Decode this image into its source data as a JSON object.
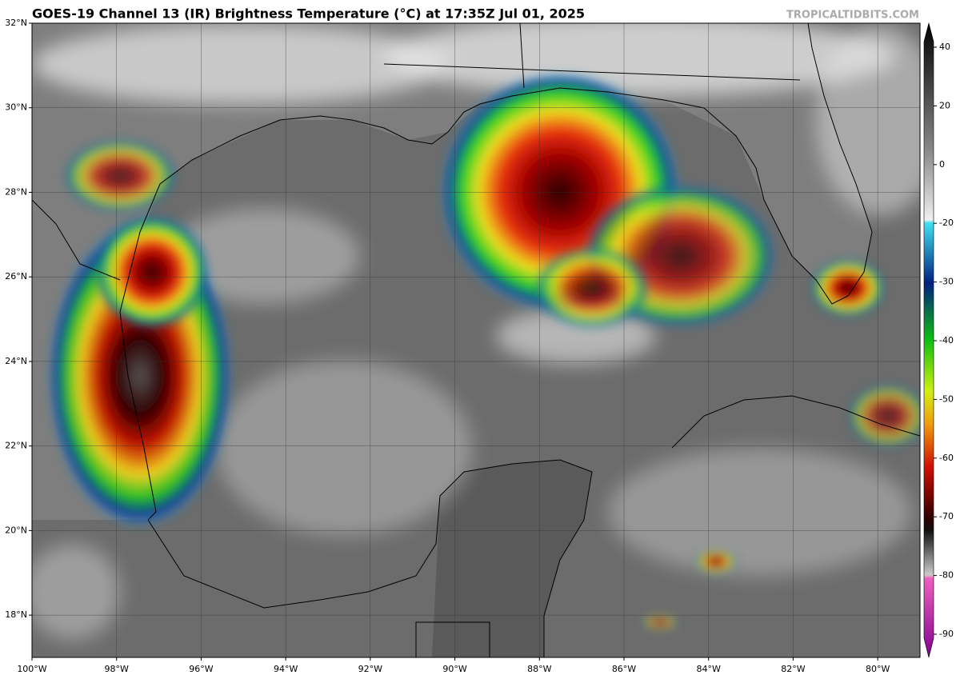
{
  "header": {
    "title": "GOES-19 Channel 13 (IR) Brightness Temperature (°C) at 17:35Z Jul 01, 2025",
    "watermark": "TROPICALTIDBITS.COM"
  },
  "map": {
    "lonlim": [
      -100,
      -79
    ],
    "latlim": [
      17,
      32
    ],
    "lonticks": [
      {
        "value": -100,
        "label": "100°W"
      },
      {
        "value": -98,
        "label": "98°W"
      },
      {
        "value": -96,
        "label": "96°W"
      },
      {
        "value": -94,
        "label": "94°W"
      },
      {
        "value": -92,
        "label": "92°W"
      },
      {
        "value": -90,
        "label": "90°W"
      },
      {
        "value": -88,
        "label": "88°W"
      },
      {
        "value": -86,
        "label": "86°W"
      },
      {
        "value": -84,
        "label": "84°W"
      },
      {
        "value": -82,
        "label": "82°W"
      },
      {
        "value": -80,
        "label": "80°W"
      }
    ],
    "latticks": [
      {
        "value": 18,
        "label": "18°N"
      },
      {
        "value": 20,
        "label": "20°N"
      },
      {
        "value": 22,
        "label": "22°N"
      },
      {
        "value": 24,
        "label": "24°N"
      },
      {
        "value": 26,
        "label": "26°N"
      },
      {
        "value": 28,
        "label": "28°N"
      },
      {
        "value": 30,
        "label": "30°N"
      },
      {
        "value": 32,
        "label": "32°N"
      }
    ],
    "grid": true
  },
  "colorbar": {
    "ticks": [
      40,
      20,
      0,
      -20,
      -30,
      -40,
      -50,
      -60,
      -70,
      -80,
      -90
    ]
  }
}
